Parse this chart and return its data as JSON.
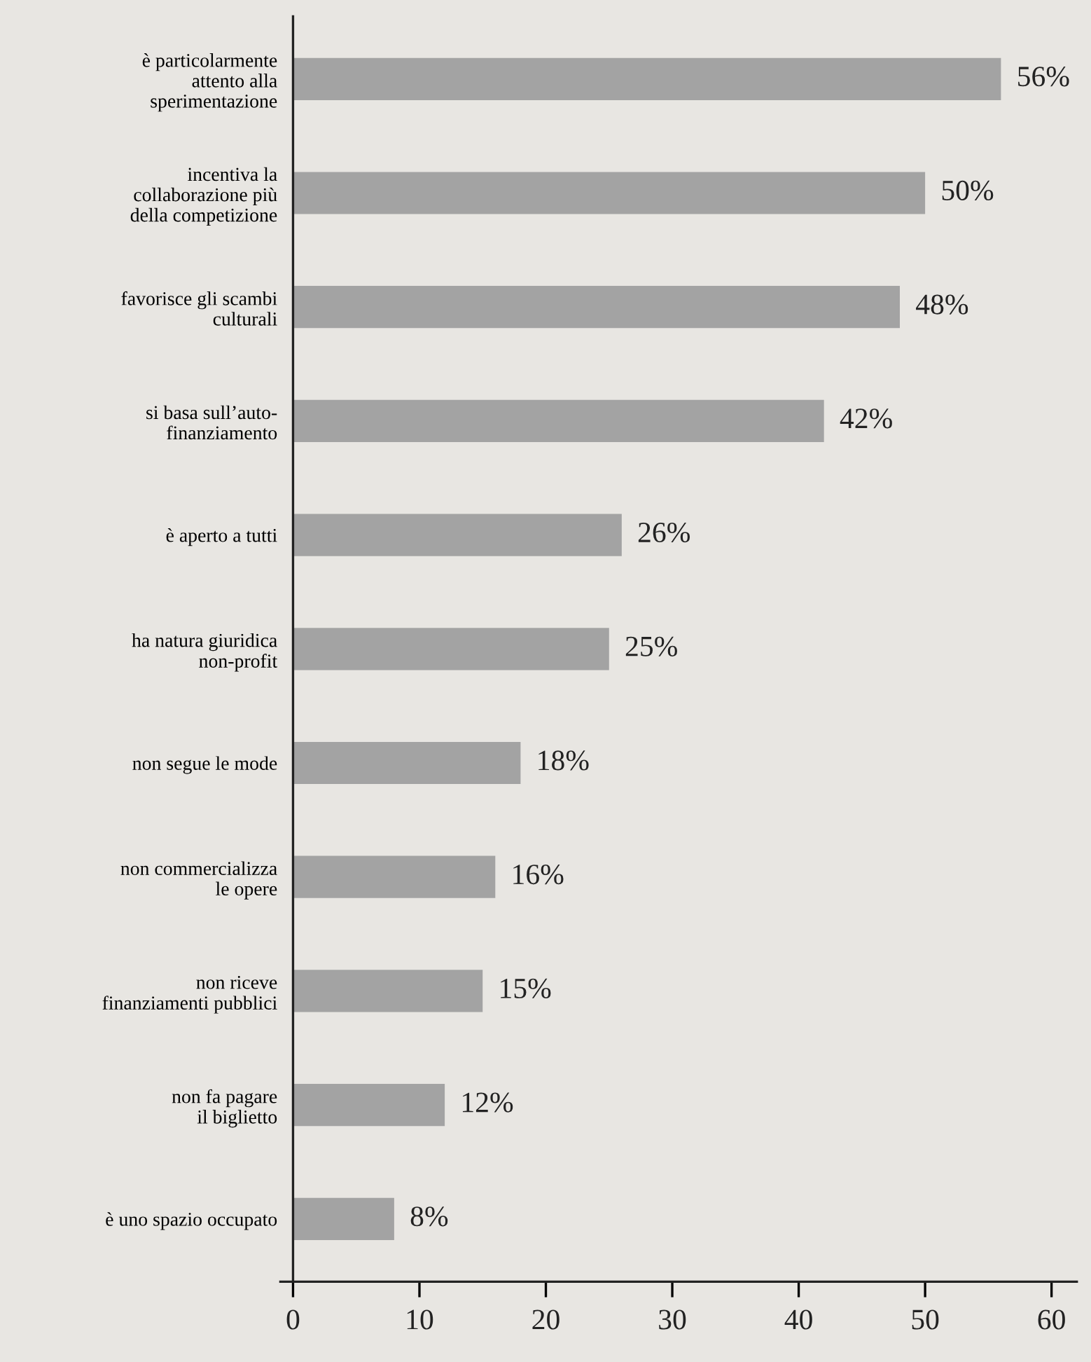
{
  "chart_data": {
    "type": "bar",
    "orientation": "horizontal",
    "categories": [
      "è particolarmente\nattento alla\nsperimentazione",
      "incentiva la\ncollaborazione più\ndella competizione",
      "favorisce gli scambi\nculturali",
      "si basa sull’auto-\nfinanziamento",
      "è aperto a tutti",
      "ha natura giuridica\nnon-profit",
      "non segue le mode",
      "non commercializza\nle opere",
      "non riceve\nfinanziamenti pubblici",
      "non fa pagare\nil biglietto",
      "è uno spazio occupato"
    ],
    "values": [
      56,
      50,
      48,
      42,
      26,
      25,
      18,
      16,
      15,
      12,
      8
    ],
    "value_labels": [
      "56%",
      "50%",
      "48%",
      "42%",
      "26%",
      "25%",
      "18%",
      "16%",
      "15%",
      "12%",
      "8%"
    ],
    "color": "#a3a3a3",
    "xlim": [
      -1,
      62
    ],
    "xticks": [
      0,
      10,
      20,
      30,
      40,
      50,
      60
    ],
    "legend": false
  }
}
